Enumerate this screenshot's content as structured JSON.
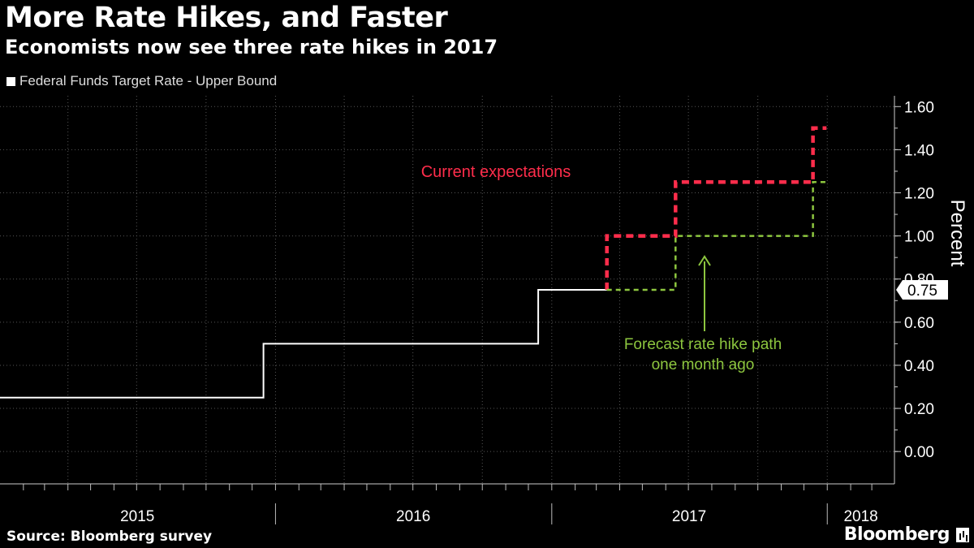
{
  "header": {
    "title": "More Rate Hikes, and Faster",
    "subtitle": "Economists now see three rate hikes in 2017"
  },
  "footer": {
    "source": "Source: Bloomberg survey",
    "brand": "Bloomberg"
  },
  "colors": {
    "background": "#000000",
    "actual": "#ffffff",
    "current": "#ff2d4b",
    "prior": "#8dc63f",
    "grid": "#555555"
  },
  "chart_data": {
    "type": "line",
    "title": "More Rate Hikes, and Faster",
    "subtitle": "Economists now see three rate hikes in 2017",
    "ylabel": "Percent",
    "ylim": [
      -0.15,
      1.65
    ],
    "yticks": [
      1.6,
      1.4,
      1.2,
      1.0,
      0.8,
      0.6,
      0.4,
      0.2,
      0.0
    ],
    "ytick_labels": [
      "1.60",
      "1.40",
      "1.20",
      "1.00",
      "0.80",
      "0.60",
      "0.40",
      "0.20",
      "0.00"
    ],
    "xlim": [
      "2015-01-01",
      "2018-03-31"
    ],
    "x_year_labels": [
      {
        "label": "2015",
        "start": "2015-01-01",
        "end": "2015-12-31"
      },
      {
        "label": "2016",
        "start": "2016-01-01",
        "end": "2016-12-31"
      },
      {
        "label": "2017",
        "start": "2017-01-01",
        "end": "2017-12-31"
      },
      {
        "label": "2018",
        "start": "2018-01-01",
        "end": "2018-03-31"
      }
    ],
    "last_value_label": "0.75",
    "grid": true,
    "legend_position": "top-left",
    "series": [
      {
        "name": "Federal Funds Target Rate - Upper Bound",
        "style": "solid",
        "color": "#ffffff",
        "points": [
          {
            "x": "2015-01-01",
            "y": 0.25
          },
          {
            "x": "2015-12-16",
            "y": 0.25
          },
          {
            "x": "2015-12-16",
            "y": 0.5
          },
          {
            "x": "2016-12-14",
            "y": 0.5
          },
          {
            "x": "2016-12-14",
            "y": 0.75
          },
          {
            "x": "2017-03-15",
            "y": 0.75
          }
        ]
      },
      {
        "legend": false,
        "style": "dashed-thick",
        "color": "#ff2d4b",
        "points": [
          {
            "x": "2017-03-15",
            "y": 0.75
          },
          {
            "x": "2017-03-15",
            "y": 1.0
          },
          {
            "x": "2017-06-14",
            "y": 1.0
          },
          {
            "x": "2017-06-14",
            "y": 1.25
          },
          {
            "x": "2017-12-13",
            "y": 1.25
          },
          {
            "x": "2017-12-13",
            "y": 1.5
          },
          {
            "x": "2017-12-31",
            "y": 1.5
          }
        ]
      },
      {
        "legend": false,
        "style": "dashed-thin",
        "color": "#8dc63f",
        "points": [
          {
            "x": "2017-03-15",
            "y": 0.75
          },
          {
            "x": "2017-06-14",
            "y": 0.75
          },
          {
            "x": "2017-06-14",
            "y": 1.0
          },
          {
            "x": "2017-12-13",
            "y": 1.0
          },
          {
            "x": "2017-12-13",
            "y": 1.25
          },
          {
            "x": "2017-12-31",
            "y": 1.25
          }
        ]
      }
    ],
    "annotations": [
      {
        "id": "current",
        "lines": [
          "Current expectations"
        ],
        "color": "#ff2d4b"
      },
      {
        "id": "prior",
        "lines": [
          "Forecast rate hike path",
          "one month ago"
        ],
        "color": "#8dc63f"
      }
    ]
  }
}
